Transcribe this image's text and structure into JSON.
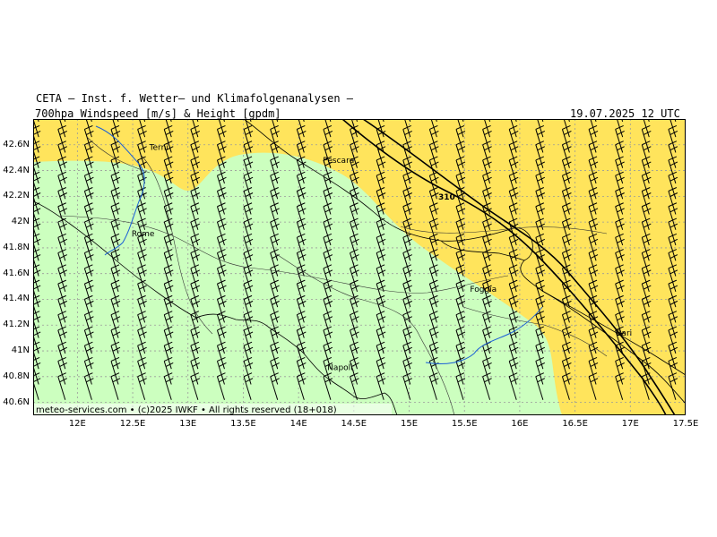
{
  "header": {
    "institute": "CETA — Inst. f. Wetter— und Klimafolgenanalysen —",
    "product": "700hpa Windspeed [m/s] & Height [gpdm]",
    "valid_time": "19.07.2025 12 UTC"
  },
  "credit": "meteo-services.com • (c)2025 IWKF • All rights reserved (18+018)",
  "map": {
    "lon_range": [
      11.6,
      17.5
    ],
    "lat_range": [
      40.5,
      42.8
    ],
    "lon_ticks": [
      {
        "value": 12.0,
        "label": "12E"
      },
      {
        "value": 12.5,
        "label": "12.5E"
      },
      {
        "value": 13.0,
        "label": "13E"
      },
      {
        "value": 13.5,
        "label": "13.5E"
      },
      {
        "value": 14.0,
        "label": "14E"
      },
      {
        "value": 14.5,
        "label": "14.5E"
      },
      {
        "value": 15.0,
        "label": "15E"
      },
      {
        "value": 15.5,
        "label": "15.5E"
      },
      {
        "value": 16.0,
        "label": "16E"
      },
      {
        "value": 16.5,
        "label": "16.5E"
      },
      {
        "value": 17.0,
        "label": "17E"
      },
      {
        "value": 17.5,
        "label": "17.5E"
      }
    ],
    "lat_ticks": [
      {
        "value": 40.6,
        "label": "40.6N"
      },
      {
        "value": 40.8,
        "label": "40.8N"
      },
      {
        "value": 41.0,
        "label": "41N"
      },
      {
        "value": 41.2,
        "label": "41.2N"
      },
      {
        "value": 41.4,
        "label": "41.4N"
      },
      {
        "value": 41.6,
        "label": "41.6N"
      },
      {
        "value": 41.8,
        "label": "41.8N"
      },
      {
        "value": 42.0,
        "label": "42N"
      },
      {
        "value": 42.2,
        "label": "42.2N"
      },
      {
        "value": 42.4,
        "label": "42.4N"
      },
      {
        "value": 42.6,
        "label": "42.6N"
      }
    ],
    "colors": {
      "speed_high": "#ffe45c",
      "speed_low": "#ccffbf",
      "coast": "#000000",
      "river": "#1a5fd6",
      "grid": "#9a9a9a"
    },
    "cities": [
      {
        "name": "Terni",
        "lon": 12.65,
        "lat": 42.56
      },
      {
        "name": "Pescara",
        "lon": 14.22,
        "lat": 42.46
      },
      {
        "name": "Rome",
        "lon": 12.49,
        "lat": 41.89
      },
      {
        "name": "Foggia",
        "lon": 15.55,
        "lat": 41.46
      },
      {
        "name": "Napoli",
        "lon": 14.26,
        "lat": 40.85
      },
      {
        "name": "Bari",
        "lon": 16.87,
        "lat": 41.12
      }
    ],
    "contour_label": "310",
    "barbs": {
      "lon_start": 11.65,
      "lon_step": 0.24,
      "lat_start": 40.62,
      "lat_step": 0.12
    }
  }
}
